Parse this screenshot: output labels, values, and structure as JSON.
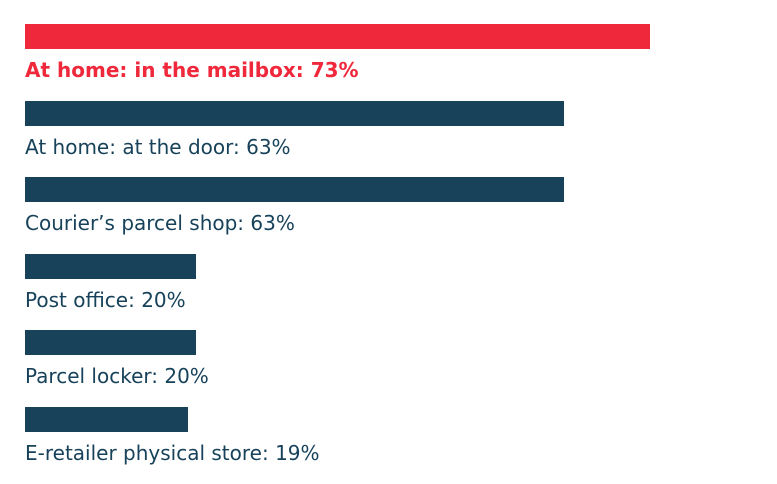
{
  "chart_data": {
    "type": "bar",
    "orientation": "horizontal",
    "categories": [
      "At home: in the mailbox:",
      "At home: at the door:",
      "Courier’s parcel shop:",
      "Post office:",
      "Parcel locker:",
      "E-retailer physical store:"
    ],
    "values": [
      73,
      63,
      63,
      20,
      20,
      19
    ],
    "value_labels": [
      "73%",
      "63%",
      "63%",
      "20%",
      "20%",
      "19%"
    ],
    "colors": [
      "#f0283c",
      "#17425a",
      "#17425a",
      "#17425a",
      "#17425a",
      "#17425a"
    ]
  }
}
